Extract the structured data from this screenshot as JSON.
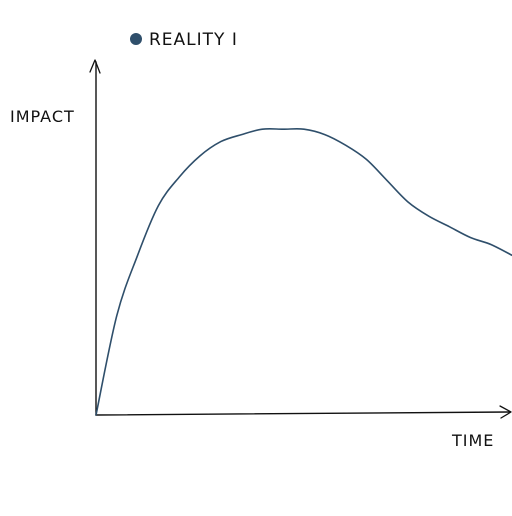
{
  "chart_data": {
    "type": "line",
    "title": "",
    "xlabel": "TIME",
    "ylabel": "IMPACT",
    "legend": {
      "position": "top-left",
      "entries": [
        "REALITY I"
      ]
    },
    "grid": false,
    "xticks": [],
    "yticks": [],
    "xlim": [
      0,
      100
    ],
    "ylim": [
      0,
      100
    ],
    "series": [
      {
        "name": "REALITY I",
        "color": "#2f4f6b",
        "x": [
          0,
          5,
          10,
          15,
          20,
          25,
          30,
          35,
          40,
          45,
          50,
          55,
          60,
          65,
          70,
          75,
          80,
          85,
          90,
          95,
          100
        ],
        "y": [
          0,
          28,
          45,
          59,
          67,
          73,
          77,
          79,
          80.5,
          80.5,
          80.5,
          79,
          76,
          72,
          66,
          60,
          56,
          53,
          50,
          48,
          45
        ]
      }
    ]
  }
}
